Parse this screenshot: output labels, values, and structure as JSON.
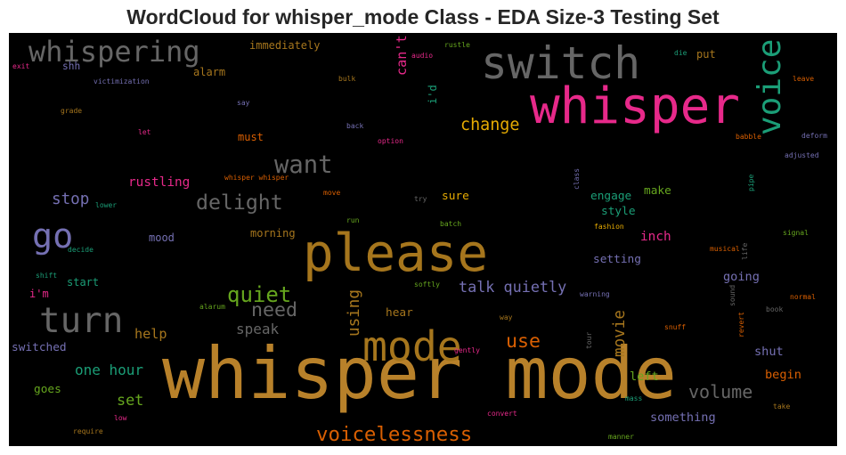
{
  "title": "WordCloud for whisper_mode Class - EDA Size-3 Testing Set",
  "colors": {
    "background": "#000000",
    "palette": [
      "#b8812a",
      "#e7298a",
      "#d95f02",
      "#7570b3",
      "#1b9e77",
      "#66a61e",
      "#e6ab02",
      "#666666",
      "#a6761d"
    ]
  },
  "chart_data": {
    "type": "wordcloud",
    "title": "WordCloud for whisper_mode Class - EDA Size-3 Testing Set",
    "words": [
      {
        "text": "whisper mode",
        "weight": 100,
        "color": "#b8812a"
      },
      {
        "text": "please",
        "weight": 72,
        "color": "#a6761d"
      },
      {
        "text": "whisper",
        "weight": 70,
        "color": "#e7298a"
      },
      {
        "text": "switch",
        "weight": 62,
        "color": "#666666"
      },
      {
        "text": "mode",
        "weight": 58,
        "color": "#a6761d"
      },
      {
        "text": "turn",
        "weight": 49,
        "color": "#666666"
      },
      {
        "text": "go",
        "weight": 48,
        "color": "#7570b3"
      },
      {
        "text": "voice",
        "weight": 45,
        "color": "#1b9e77"
      },
      {
        "text": "whispering",
        "weight": 40,
        "color": "#666666"
      },
      {
        "text": "want",
        "weight": 34,
        "color": "#666666"
      },
      {
        "text": "quiet",
        "weight": 30,
        "color": "#66a61e"
      },
      {
        "text": "delight",
        "weight": 29,
        "color": "#666666"
      },
      {
        "text": "voicelessness",
        "weight": 28,
        "color": "#d95f02"
      },
      {
        "text": "need",
        "weight": 27,
        "color": "#666666"
      },
      {
        "text": "use",
        "weight": 27,
        "color": "#d95f02"
      },
      {
        "text": "volume",
        "weight": 25,
        "color": "#666666"
      },
      {
        "text": "change",
        "weight": 23,
        "color": "#e6ab02"
      },
      {
        "text": "stop",
        "weight": 22,
        "color": "#7570b3"
      },
      {
        "text": "using",
        "weight": 22,
        "color": "#a6761d"
      },
      {
        "text": "movie",
        "weight": 22,
        "color": "#a6761d"
      },
      {
        "text": "talk quietly",
        "weight": 21,
        "color": "#7570b3"
      },
      {
        "text": "set",
        "weight": 21,
        "color": "#66a61e"
      },
      {
        "text": "one hour",
        "weight": 20,
        "color": "#1b9e77"
      },
      {
        "text": "speak",
        "weight": 20,
        "color": "#666666"
      },
      {
        "text": "help",
        "weight": 19,
        "color": "#a6761d"
      },
      {
        "text": "can't",
        "weight": 19,
        "color": "#e7298a"
      },
      {
        "text": "rustling",
        "weight": 18,
        "color": "#e7298a"
      },
      {
        "text": "inch",
        "weight": 18,
        "color": "#e7298a"
      },
      {
        "text": "something",
        "weight": 17,
        "color": "#7570b3"
      },
      {
        "text": "left",
        "weight": 17,
        "color": "#66a61e"
      },
      {
        "text": "shut",
        "weight": 17,
        "color": "#7570b3"
      },
      {
        "text": "begin",
        "weight": 17,
        "color": "#d95f02"
      },
      {
        "text": "going",
        "weight": 17,
        "color": "#7570b3"
      },
      {
        "text": "hear",
        "weight": 16,
        "color": "#a6761d"
      },
      {
        "text": "switched",
        "weight": 16,
        "color": "#7570b3"
      },
      {
        "text": "goes",
        "weight": 16,
        "color": "#66a61e"
      },
      {
        "text": "setting",
        "weight": 16,
        "color": "#7570b3"
      },
      {
        "text": "style",
        "weight": 16,
        "color": "#1b9e77"
      },
      {
        "text": "engage",
        "weight": 16,
        "color": "#1b9e77"
      },
      {
        "text": "make",
        "weight": 16,
        "color": "#66a61e"
      },
      {
        "text": "sure",
        "weight": 16,
        "color": "#e6ab02"
      },
      {
        "text": "mood",
        "weight": 15,
        "color": "#7570b3"
      },
      {
        "text": "morning",
        "weight": 15,
        "color": "#a6761d"
      },
      {
        "text": "start",
        "weight": 15,
        "color": "#1b9e77"
      },
      {
        "text": "i'm",
        "weight": 15,
        "color": "#e7298a"
      },
      {
        "text": "alarm",
        "weight": 15,
        "color": "#a6761d"
      },
      {
        "text": "immediately",
        "weight": 15,
        "color": "#a6761d"
      },
      {
        "text": "i'd",
        "weight": 15,
        "color": "#1b9e77"
      },
      {
        "text": "must",
        "weight": 15,
        "color": "#d95f02"
      },
      {
        "text": "put",
        "weight": 15,
        "color": "#a6761d"
      },
      {
        "text": "shh",
        "weight": 14,
        "color": "#7570b3"
      },
      {
        "text": "audio",
        "weight": 9,
        "color": "#e7298a"
      },
      {
        "text": "rustle",
        "weight": 9,
        "color": "#66a61e"
      },
      {
        "text": "exit",
        "weight": 9,
        "color": "#e7298a"
      },
      {
        "text": "victimization",
        "weight": 9,
        "color": "#7570b3"
      },
      {
        "text": "bulk",
        "weight": 9,
        "color": "#a6761d"
      },
      {
        "text": "die",
        "weight": 9,
        "color": "#1b9e77"
      },
      {
        "text": "leave",
        "weight": 9,
        "color": "#d95f02"
      },
      {
        "text": "grade",
        "weight": 9,
        "color": "#a6761d"
      },
      {
        "text": "say",
        "weight": 9,
        "color": "#7570b3"
      },
      {
        "text": "back",
        "weight": 9,
        "color": "#7570b3"
      },
      {
        "text": "let",
        "weight": 9,
        "color": "#e7298a"
      },
      {
        "text": "option",
        "weight": 9,
        "color": "#e7298a"
      },
      {
        "text": "babble",
        "weight": 9,
        "color": "#d95f02"
      },
      {
        "text": "deform",
        "weight": 9,
        "color": "#7570b3"
      },
      {
        "text": "adjusted",
        "weight": 9,
        "color": "#7570b3"
      },
      {
        "text": "whisper whisper",
        "weight": 9,
        "color": "#d95f02"
      },
      {
        "text": "move",
        "weight": 9,
        "color": "#d95f02"
      },
      {
        "text": "try",
        "weight": 9,
        "color": "#666666"
      },
      {
        "text": "class",
        "weight": 9,
        "color": "#7570b3"
      },
      {
        "text": "pipe",
        "weight": 9,
        "color": "#1b9e77"
      },
      {
        "text": "lower",
        "weight": 9,
        "color": "#1b9e77"
      },
      {
        "text": "run",
        "weight": 9,
        "color": "#66a61e"
      },
      {
        "text": "batch",
        "weight": 9,
        "color": "#66a61e"
      },
      {
        "text": "fashion",
        "weight": 9,
        "color": "#e6ab02"
      },
      {
        "text": "decide",
        "weight": 9,
        "color": "#1b9e77"
      },
      {
        "text": "signal",
        "weight": 9,
        "color": "#66a61e"
      },
      {
        "text": "musical",
        "weight": 9,
        "color": "#d95f02"
      },
      {
        "text": "life",
        "weight": 9,
        "color": "#666666"
      },
      {
        "text": "shift",
        "weight": 9,
        "color": "#1b9e77"
      },
      {
        "text": "softly",
        "weight": 9,
        "color": "#66a61e"
      },
      {
        "text": "warning",
        "weight": 9,
        "color": "#7570b3"
      },
      {
        "text": "sound",
        "weight": 9,
        "color": "#666666"
      },
      {
        "text": "normal",
        "weight": 9,
        "color": "#d95f02"
      },
      {
        "text": "alarum",
        "weight": 9,
        "color": "#66a61e"
      },
      {
        "text": "book",
        "weight": 9,
        "color": "#666666"
      },
      {
        "text": "way",
        "weight": 9,
        "color": "#a6761d"
      },
      {
        "text": "snuff",
        "weight": 9,
        "color": "#d95f02"
      },
      {
        "text": "revert",
        "weight": 9,
        "color": "#d95f02"
      },
      {
        "text": "tour",
        "weight": 9,
        "color": "#666666"
      },
      {
        "text": "gently",
        "weight": 9,
        "color": "#e7298a"
      },
      {
        "text": "mass",
        "weight": 9,
        "color": "#1b9e77"
      },
      {
        "text": "take",
        "weight": 9,
        "color": "#a6761d"
      },
      {
        "text": "low",
        "weight": 9,
        "color": "#e7298a"
      },
      {
        "text": "convert",
        "weight": 9,
        "color": "#e7298a"
      },
      {
        "text": "require",
        "weight": 9,
        "color": "#a6761d"
      },
      {
        "text": "manner",
        "weight": 9,
        "color": "#66a61e"
      }
    ]
  }
}
